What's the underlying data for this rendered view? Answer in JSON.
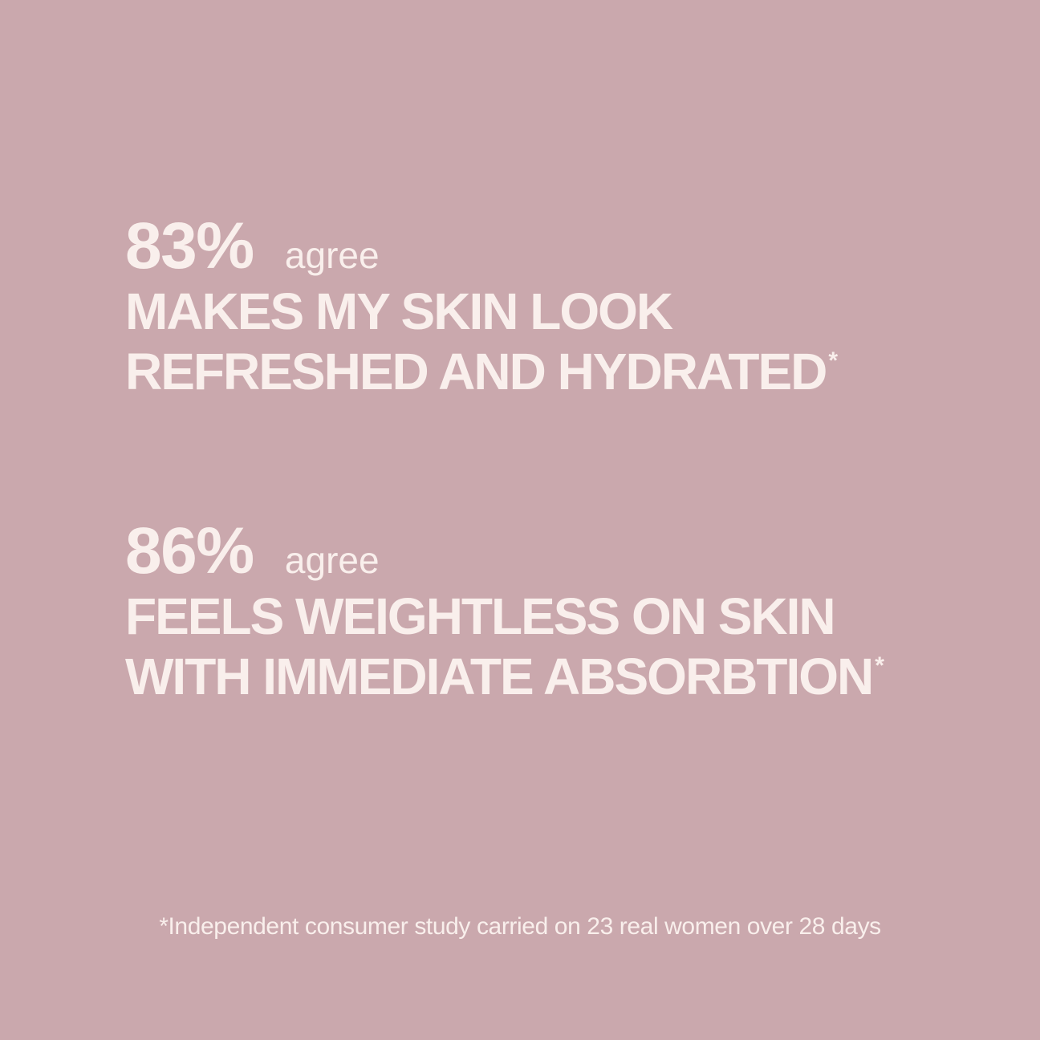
{
  "page": {
    "background_color": "#caa8ad",
    "text_color": "#f9efec"
  },
  "stats": [
    {
      "percent": "83%",
      "qualifier": "agree",
      "claim_line1": "MAKES MY SKIN LOOK",
      "claim_line2": "REFRESHED AND HYDRATED",
      "footnote_marker": "*"
    },
    {
      "percent": "86%",
      "qualifier": "agree",
      "claim_line1": "FEELS WEIGHTLESS ON SKIN",
      "claim_line2": "WITH IMMEDIATE ABSORBTION",
      "footnote_marker": "*"
    }
  ],
  "footnote": "*Independent consumer study carried on 23 real women over 28 days"
}
